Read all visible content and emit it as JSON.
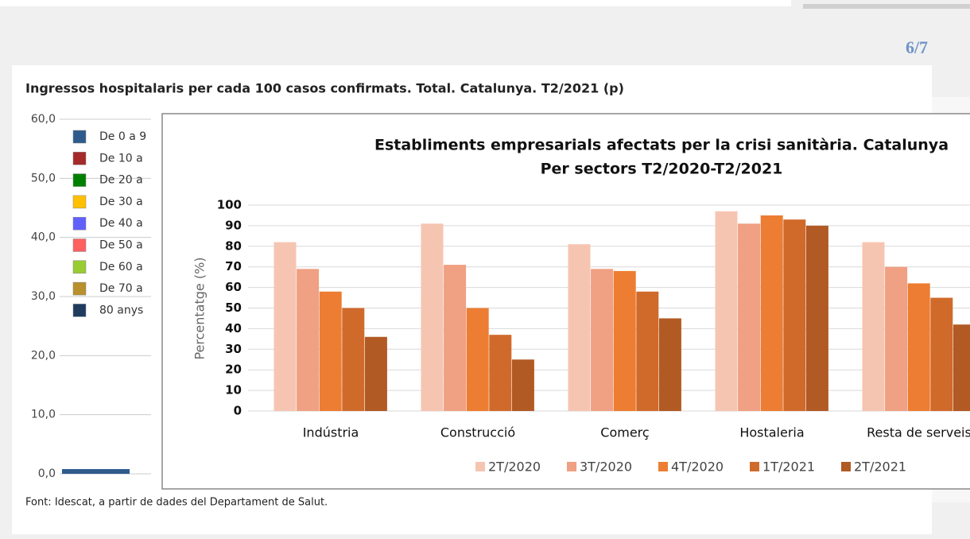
{
  "page_counter": "6/7",
  "source": "Font: Idescat, a partir de dades del Departament de Salut.",
  "chart_data": [
    {
      "type": "bar",
      "title": "Ingressos hospitalaris per cada 100 casos confirmats. Total. Catalunya. T2/2021 (p)",
      "ylim": [
        0,
        60
      ],
      "yticks": [
        {
          "value": 0,
          "label": "0,0"
        },
        {
          "value": 10,
          "label": "10,0"
        },
        {
          "value": 20,
          "label": "20,0"
        },
        {
          "value": 30,
          "label": "30,0"
        },
        {
          "value": 40,
          "label": "40,0"
        },
        {
          "value": 50,
          "label": "50,0"
        },
        {
          "value": 60,
          "label": "60,0"
        }
      ],
      "grid": true,
      "series": [
        {
          "name": "De 0 a 9",
          "color": "#2f5b8c",
          "values": [
            0.8
          ]
        },
        {
          "name": "De 10 a",
          "color": "#a52a2a",
          "values": [
            null
          ]
        },
        {
          "name": "De 20 a",
          "color": "#008000",
          "values": [
            null
          ]
        },
        {
          "name": "De 30 a",
          "color": "#ffc000",
          "values": [
            null
          ]
        },
        {
          "name": "De 40 a",
          "color": "#6060ff",
          "values": [
            null
          ]
        },
        {
          "name": "De 50 a",
          "color": "#ff6060",
          "values": [
            null
          ]
        },
        {
          "name": "De 60 a",
          "color": "#99cc33",
          "values": [
            null
          ]
        },
        {
          "name": "De 70 a",
          "color": "#b8902c",
          "values": [
            null
          ]
        },
        {
          "name": "80 anys",
          "color": "#1f3b5e",
          "values": [
            null
          ]
        }
      ]
    },
    {
      "type": "bar",
      "title": "Establiments empresarials afectats per la crisi sanitària. Catalunya",
      "subtitle": "Per sectors T2/2020-T2/2021",
      "y_label": "Percentatge (%)",
      "categories": [
        "Indústria",
        "Construcció",
        "Comerç",
        "Hostaleria",
        "Resta de serveis"
      ],
      "ylim": [
        0,
        100
      ],
      "yticks": [
        0,
        10,
        20,
        30,
        40,
        50,
        60,
        70,
        80,
        90,
        100
      ],
      "grid": true,
      "series": [
        {
          "name": "2T/2020",
          "color": "#f6c5b2",
          "values": [
            82,
            91,
            81,
            97,
            82
          ]
        },
        {
          "name": "3T/2020",
          "color": "#f0a083",
          "values": [
            69,
            71,
            69,
            91,
            70
          ]
        },
        {
          "name": "4T/2020",
          "color": "#ec7d32",
          "values": [
            58,
            50,
            68,
            95,
            62
          ]
        },
        {
          "name": "1T/2021",
          "color": "#d06a2b",
          "values": [
            50,
            37,
            58,
            93,
            55
          ]
        },
        {
          "name": "2T/2021",
          "color": "#b15a24",
          "values": [
            36,
            25,
            45,
            90,
            42
          ]
        }
      ]
    }
  ]
}
